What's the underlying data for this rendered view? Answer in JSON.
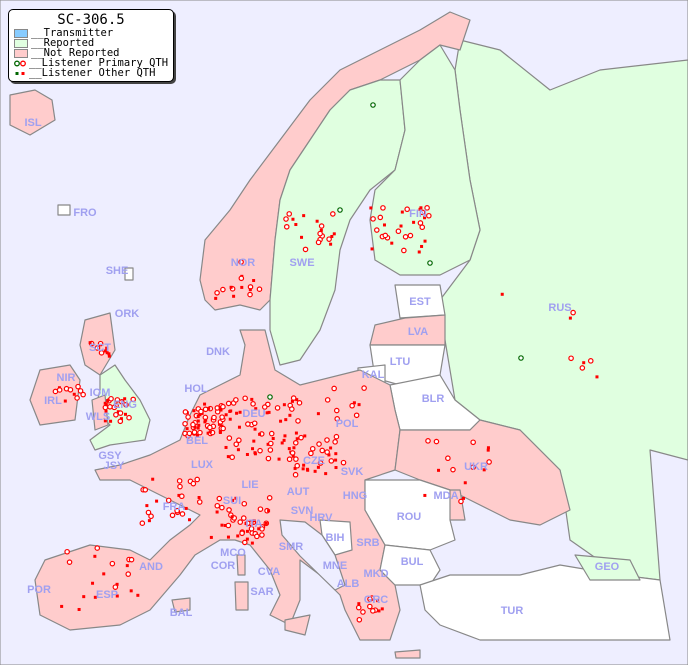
{
  "title": "SC-306.5",
  "legend": [
    {
      "label": "__Transmitter",
      "color": "#88ccff"
    },
    {
      "label": "__Reported",
      "color": "#e0ffe0"
    },
    {
      "label": "__Not Reported",
      "color": "#ffcccc"
    },
    {
      "label": "__Listener Primary QTH",
      "marker": "circle"
    },
    {
      "label": "__Listener Other QTH",
      "marker": "square"
    }
  ],
  "colors": {
    "sea": "#eeeeff",
    "reported": "#e0ffe0",
    "not_reported": "#ffcccc",
    "no_data": "#ffffff",
    "border": "#888888",
    "label": "#a0a0f0",
    "listener": "#ff0000",
    "listener_highlight": "#006600"
  },
  "countries": {
    "reported": [
      "SWE",
      "FIN",
      "RUS",
      "ENG",
      "GEO"
    ],
    "not_reported": [
      "ISL",
      "NOR",
      "DNK",
      "SCT",
      "NIR",
      "IRL",
      "WLS",
      "HOL",
      "BEL",
      "LUX",
      "DEU",
      "POL",
      "FRA",
      "SUI",
      "LIE",
      "AUT",
      "CZE",
      "SVK",
      "HNG",
      "SVN",
      "HRV",
      "ITA",
      "SMR",
      "CVA",
      "MCO",
      "COR",
      "SAR",
      "ESP",
      "POR",
      "AND",
      "BAL",
      "SRB",
      "MNE",
      "ALB",
      "MKD",
      "GRC",
      "UKR",
      "MDA",
      "LVA"
    ],
    "no_data": [
      "FRO",
      "SHE",
      "ORK",
      "IOM",
      "GSY",
      "JSY",
      "EST",
      "LTU",
      "KAL",
      "BLR",
      "ROU",
      "BUL",
      "BIH",
      "TUR"
    ]
  },
  "labels": [
    "ISL",
    "FRO",
    "SHE",
    "ORK",
    "NOR",
    "SWE",
    "FIN",
    "EST",
    "RUS",
    "LVA",
    "LTU",
    "KAL",
    "BLR",
    "DNK",
    "SCT",
    "NIR",
    "IOM",
    "IRL",
    "WLS",
    "ENG",
    "HOL",
    "DEU",
    "POL",
    "BEL",
    "GSY",
    "JSY",
    "LUX",
    "CZE",
    "SVK",
    "UKR",
    "FRA",
    "SUI",
    "LIE",
    "AUT",
    "HNG",
    "MDA",
    "SVN",
    "HRV",
    "ITA",
    "ROU",
    "BIH",
    "SRB",
    "SMR",
    "MCO",
    "COR",
    "AND",
    "BUL",
    "MNE",
    "CVA",
    "GEO",
    "MKD",
    "ALB",
    "POR",
    "ESP",
    "SAR",
    "GRC",
    "BAL",
    "TUR"
  ]
}
